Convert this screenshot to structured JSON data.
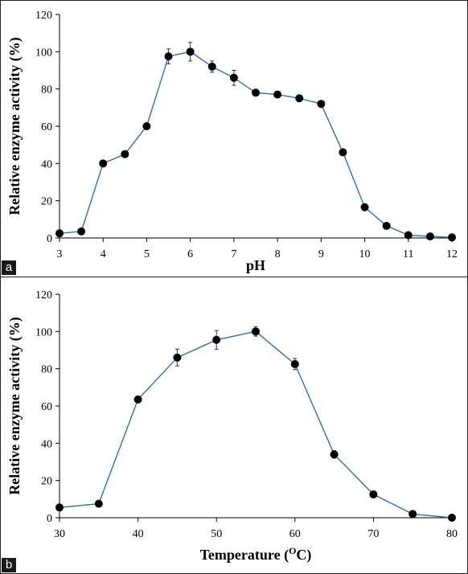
{
  "panels": [
    {
      "letter": "a",
      "chart_data": {
        "type": "line",
        "xlabel": "pH",
        "ylabel": "Relative enzyme activity (%)",
        "xlim": [
          3,
          12
        ],
        "ylim": [
          0,
          120
        ],
        "x_ticks": [
          3,
          4,
          5,
          6,
          7,
          8,
          9,
          10,
          11,
          12
        ],
        "y_ticks": [
          0,
          20,
          40,
          60,
          80,
          100,
          120
        ],
        "grid": false,
        "line_color": "#2e6fb7",
        "marker_color": "#000000",
        "series": [
          {
            "x": [
              3,
              3.5,
              4,
              4.5,
              5,
              5.5,
              6,
              6.5,
              7,
              7.5,
              8,
              8.5,
              9,
              9.5,
              10,
              10.5,
              11,
              11.5,
              12
            ],
            "y": [
              2.5,
              3.5,
              40,
              45,
              60,
              97.5,
              100,
              92,
              86,
              78,
              77,
              75,
              72,
              46,
              16.5,
              6.5,
              1.5,
              0.8,
              0.3
            ],
            "error": [
              0,
              0,
              0,
              0,
              0,
              4,
              5,
              3,
              4,
              1.5,
              0,
              0,
              0,
              0,
              0,
              0,
              0,
              0,
              0
            ]
          }
        ]
      }
    },
    {
      "letter": "b",
      "chart_data": {
        "type": "line",
        "xlabel": "Temperature (",
        "xlabel_superscript": "O",
        "xlabel_suffix": "C)",
        "ylabel": "Relative enzyme  activity (%)",
        "xlim": [
          30,
          80
        ],
        "ylim": [
          0,
          120
        ],
        "x_ticks": [
          30,
          40,
          50,
          60,
          70,
          80
        ],
        "y_ticks": [
          0,
          20,
          40,
          60,
          80,
          100,
          120
        ],
        "grid": false,
        "line_color": "#2e6fb7",
        "marker_color": "#000000",
        "series": [
          {
            "x": [
              30,
              35,
              40,
              45,
              50,
              55,
              60,
              65,
              70,
              75,
              80
            ],
            "y": [
              5.5,
              7.5,
              63.5,
              86,
              95.5,
              100,
              82.5,
              34,
              12.5,
              2,
              0
            ],
            "error": [
              0,
              0,
              0,
              4.5,
              5,
              2.5,
              3,
              2,
              0,
              0,
              0
            ]
          }
        ]
      }
    }
  ]
}
